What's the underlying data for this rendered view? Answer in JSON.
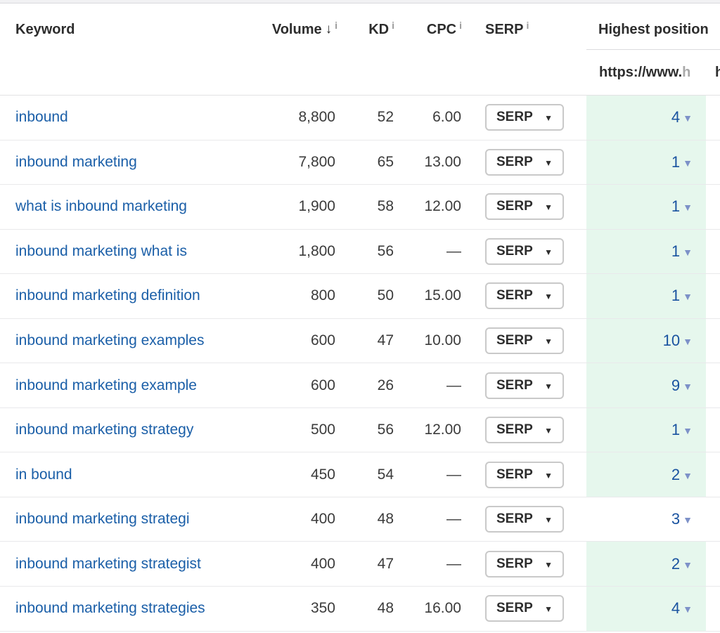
{
  "header": {
    "columns": {
      "keyword": "Keyword",
      "volume": "Volume",
      "kd": "KD",
      "cpc": "CPC",
      "serp": "SERP",
      "highest_position": "Highest position"
    },
    "target_url": {
      "prefix": "https://www.",
      "partial": "h",
      "edge_partial": "h"
    }
  },
  "icons": {
    "sort_desc": "↓",
    "info": "i",
    "dropdown_caret": "▼",
    "position_caret": "▼"
  },
  "serp_button": {
    "label": "SERP"
  },
  "colors": {
    "keyword_link": "#1b5fa8",
    "position_num": "#1a53a0",
    "position_caret": "#7d91c8",
    "highlight_bg": "#e6f7ed"
  },
  "rows": [
    {
      "keyword": "inbound",
      "volume": "8,800",
      "kd": "52",
      "cpc": "6.00",
      "position": "4",
      "highlighted": true
    },
    {
      "keyword": "inbound marketing",
      "volume": "7,800",
      "kd": "65",
      "cpc": "13.00",
      "position": "1",
      "highlighted": true
    },
    {
      "keyword": "what is inbound marketing",
      "volume": "1,900",
      "kd": "58",
      "cpc": "12.00",
      "position": "1",
      "highlighted": true
    },
    {
      "keyword": "inbound marketing what is",
      "volume": "1,800",
      "kd": "56",
      "cpc": "—",
      "position": "1",
      "highlighted": true
    },
    {
      "keyword": "inbound marketing definition",
      "volume": "800",
      "kd": "50",
      "cpc": "15.00",
      "position": "1",
      "highlighted": true
    },
    {
      "keyword": "inbound marketing examples",
      "volume": "600",
      "kd": "47",
      "cpc": "10.00",
      "position": "10",
      "highlighted": true
    },
    {
      "keyword": "inbound marketing example",
      "volume": "600",
      "kd": "26",
      "cpc": "—",
      "position": "9",
      "highlighted": true
    },
    {
      "keyword": "inbound marketing strategy",
      "volume": "500",
      "kd": "56",
      "cpc": "12.00",
      "position": "1",
      "highlighted": true
    },
    {
      "keyword": "in bound",
      "volume": "450",
      "kd": "54",
      "cpc": "—",
      "position": "2",
      "highlighted": true
    },
    {
      "keyword": "inbound marketing strategi",
      "volume": "400",
      "kd": "48",
      "cpc": "—",
      "position": "3",
      "highlighted": false
    },
    {
      "keyword": "inbound marketing strategist",
      "volume": "400",
      "kd": "47",
      "cpc": "—",
      "position": "2",
      "highlighted": true
    },
    {
      "keyword": "inbound marketing strategies",
      "volume": "350",
      "kd": "48",
      "cpc": "16.00",
      "position": "4",
      "highlighted": true
    }
  ]
}
